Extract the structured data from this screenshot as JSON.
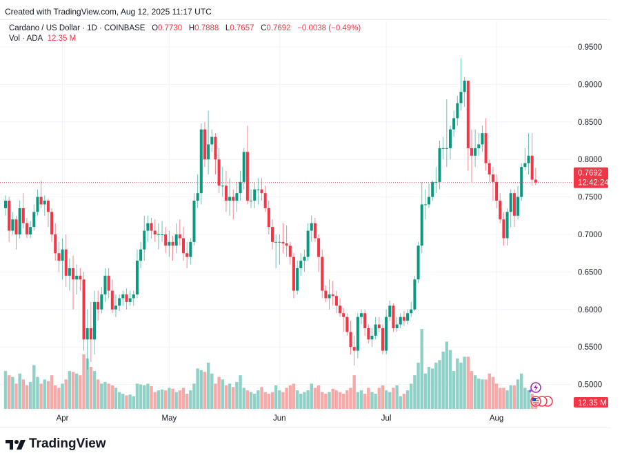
{
  "header": {
    "created": "Created with TradingView.com, Aug 12, 2025 11:17 UTC"
  },
  "legend": {
    "symbol": "Cardano / US Dollar · 1D · COINBASE",
    "o_label": "O",
    "o": "0.7730",
    "h_label": "H",
    "h": "0.7888",
    "l_label": "L",
    "l": "0.7657",
    "c_label": "C",
    "c": "0.7692",
    "change": "−0.0038 (−0.49%)",
    "vol_label": "Vol · ADA",
    "vol": "12.35 M"
  },
  "last_price": {
    "value": "0.7692",
    "countdown": "12:42:24"
  },
  "last_volume": "12.35 M",
  "footer": {
    "logo_text": "TradingView"
  },
  "colors": {
    "up": "#089981",
    "down": "#f23645",
    "up_vol": "#8fd0c7",
    "down_vol": "#f7a9a7",
    "grid": "#f0f3fa"
  },
  "icons": [
    "lightning-event-icon",
    "us-flag-event-icon"
  ],
  "chart_data": {
    "type": "candlestick",
    "title": "Cardano / US Dollar · 1D · COINBASE",
    "y_ticks": [
      "0.9500",
      "0.9000",
      "0.8500",
      "0.8000",
      "0.7500",
      "0.7000",
      "0.6500",
      "0.6000",
      "0.5500",
      "0.5000"
    ],
    "ylim": [
      0.5,
      0.95
    ],
    "x_labels": [
      {
        "label": "Apr",
        "index": 16
      },
      {
        "label": "May",
        "index": 46
      },
      {
        "label": "Jun",
        "index": 77
      },
      {
        "label": "Jul",
        "index": 107
      },
      {
        "label": "Aug",
        "index": 138
      }
    ],
    "grid": true,
    "ohlc": [
      [
        0.735,
        0.752,
        0.725,
        0.745
      ],
      [
        0.745,
        0.75,
        0.69,
        0.705
      ],
      [
        0.705,
        0.73,
        0.7,
        0.72
      ],
      [
        0.72,
        0.725,
        0.68,
        0.7
      ],
      [
        0.7,
        0.745,
        0.695,
        0.735
      ],
      [
        0.735,
        0.755,
        0.708,
        0.715
      ],
      [
        0.715,
        0.722,
        0.695,
        0.7
      ],
      [
        0.7,
        0.718,
        0.695,
        0.71
      ],
      [
        0.71,
        0.74,
        0.705,
        0.73
      ],
      [
        0.73,
        0.76,
        0.725,
        0.75
      ],
      [
        0.75,
        0.772,
        0.735,
        0.74
      ],
      [
        0.74,
        0.752,
        0.725,
        0.745
      ],
      [
        0.745,
        0.748,
        0.71,
        0.73
      ],
      [
        0.73,
        0.735,
        0.69,
        0.7
      ],
      [
        0.7,
        0.715,
        0.665,
        0.675
      ],
      [
        0.675,
        0.69,
        0.65,
        0.665
      ],
      [
        0.665,
        0.695,
        0.64,
        0.68
      ],
      [
        0.68,
        0.7,
        0.63,
        0.645
      ],
      [
        0.645,
        0.668,
        0.625,
        0.655
      ],
      [
        0.655,
        0.672,
        0.6,
        0.64
      ],
      [
        0.64,
        0.66,
        0.62,
        0.645
      ],
      [
        0.645,
        0.655,
        0.625,
        0.64
      ],
      [
        0.64,
        0.65,
        0.545,
        0.56
      ],
      [
        0.56,
        0.6,
        0.52,
        0.575
      ],
      [
        0.575,
        0.61,
        0.53,
        0.56
      ],
      [
        0.56,
        0.625,
        0.54,
        0.61
      ],
      [
        0.61,
        0.625,
        0.585,
        0.6
      ],
      [
        0.6,
        0.63,
        0.595,
        0.62
      ],
      [
        0.62,
        0.655,
        0.61,
        0.645
      ],
      [
        0.645,
        0.655,
        0.615,
        0.625
      ],
      [
        0.625,
        0.64,
        0.595,
        0.6
      ],
      [
        0.6,
        0.62,
        0.59,
        0.605
      ],
      [
        0.605,
        0.62,
        0.598,
        0.615
      ],
      [
        0.615,
        0.625,
        0.605,
        0.62
      ],
      [
        0.62,
        0.628,
        0.6,
        0.61
      ],
      [
        0.61,
        0.625,
        0.605,
        0.615
      ],
      [
        0.615,
        0.625,
        0.605,
        0.62
      ],
      [
        0.62,
        0.68,
        0.615,
        0.665
      ],
      [
        0.665,
        0.69,
        0.655,
        0.68
      ],
      [
        0.68,
        0.725,
        0.665,
        0.705
      ],
      [
        0.705,
        0.725,
        0.69,
        0.715
      ],
      [
        0.715,
        0.722,
        0.695,
        0.705
      ],
      [
        0.705,
        0.72,
        0.69,
        0.7
      ],
      [
        0.7,
        0.715,
        0.68,
        0.7
      ],
      [
        0.7,
        0.718,
        0.69,
        0.7
      ],
      [
        0.7,
        0.71,
        0.675,
        0.685
      ],
      [
        0.685,
        0.705,
        0.67,
        0.69
      ],
      [
        0.69,
        0.698,
        0.665,
        0.685
      ],
      [
        0.685,
        0.715,
        0.675,
        0.7
      ],
      [
        0.7,
        0.72,
        0.685,
        0.695
      ],
      [
        0.695,
        0.71,
        0.665,
        0.675
      ],
      [
        0.675,
        0.69,
        0.655,
        0.67
      ],
      [
        0.67,
        0.695,
        0.66,
        0.69
      ],
      [
        0.69,
        0.755,
        0.685,
        0.745
      ],
      [
        0.745,
        0.78,
        0.735,
        0.755
      ],
      [
        0.755,
        0.848,
        0.74,
        0.84
      ],
      [
        0.84,
        0.85,
        0.79,
        0.8
      ],
      [
        0.8,
        0.865,
        0.78,
        0.82
      ],
      [
        0.82,
        0.84,
        0.81,
        0.83
      ],
      [
        0.83,
        0.835,
        0.78,
        0.8
      ],
      [
        0.8,
        0.815,
        0.755,
        0.765
      ],
      [
        0.765,
        0.79,
        0.75,
        0.765
      ],
      [
        0.765,
        0.785,
        0.73,
        0.745
      ],
      [
        0.745,
        0.775,
        0.725,
        0.75
      ],
      [
        0.75,
        0.76,
        0.72,
        0.745
      ],
      [
        0.745,
        0.77,
        0.73,
        0.755
      ],
      [
        0.755,
        0.785,
        0.745,
        0.77
      ],
      [
        0.77,
        0.815,
        0.76,
        0.81
      ],
      [
        0.81,
        0.845,
        0.74,
        0.745
      ],
      [
        0.745,
        0.76,
        0.735,
        0.745
      ],
      [
        0.745,
        0.77,
        0.735,
        0.76
      ],
      [
        0.76,
        0.775,
        0.74,
        0.76
      ],
      [
        0.76,
        0.775,
        0.745,
        0.755
      ],
      [
        0.755,
        0.765,
        0.73,
        0.735
      ],
      [
        0.735,
        0.745,
        0.7,
        0.71
      ],
      [
        0.71,
        0.72,
        0.68,
        0.69
      ],
      [
        0.69,
        0.7,
        0.655,
        0.69
      ],
      [
        0.69,
        0.7,
        0.66,
        0.69
      ],
      [
        0.69,
        0.715,
        0.675,
        0.688
      ],
      [
        0.688,
        0.712,
        0.67,
        0.685
      ],
      [
        0.685,
        0.69,
        0.66,
        0.67
      ],
      [
        0.67,
        0.675,
        0.615,
        0.625
      ],
      [
        0.625,
        0.665,
        0.62,
        0.655
      ],
      [
        0.655,
        0.675,
        0.645,
        0.665
      ],
      [
        0.665,
        0.68,
        0.65,
        0.67
      ],
      [
        0.67,
        0.715,
        0.665,
        0.705
      ],
      [
        0.705,
        0.725,
        0.69,
        0.715
      ],
      [
        0.715,
        0.722,
        0.69,
        0.695
      ],
      [
        0.695,
        0.7,
        0.65,
        0.67
      ],
      [
        0.67,
        0.68,
        0.615,
        0.625
      ],
      [
        0.625,
        0.632,
        0.61,
        0.615
      ],
      [
        0.615,
        0.64,
        0.6,
        0.62
      ],
      [
        0.62,
        0.638,
        0.605,
        0.618
      ],
      [
        0.618,
        0.625,
        0.595,
        0.605
      ],
      [
        0.605,
        0.615,
        0.59,
        0.595
      ],
      [
        0.595,
        0.602,
        0.57,
        0.59
      ],
      [
        0.59,
        0.595,
        0.565,
        0.57
      ],
      [
        0.57,
        0.585,
        0.54,
        0.55
      ],
      [
        0.55,
        0.565,
        0.525,
        0.545
      ],
      [
        0.545,
        0.595,
        0.535,
        0.59
      ],
      [
        0.59,
        0.6,
        0.58,
        0.595
      ],
      [
        0.595,
        0.6,
        0.565,
        0.575
      ],
      [
        0.575,
        0.58,
        0.555,
        0.56
      ],
      [
        0.56,
        0.575,
        0.55,
        0.565
      ],
      [
        0.565,
        0.59,
        0.56,
        0.58
      ],
      [
        0.58,
        0.59,
        0.57,
        0.575
      ],
      [
        0.575,
        0.58,
        0.54,
        0.545
      ],
      [
        0.545,
        0.6,
        0.54,
        0.59
      ],
      [
        0.59,
        0.612,
        0.585,
        0.605
      ],
      [
        0.605,
        0.608,
        0.57,
        0.575
      ],
      [
        0.575,
        0.59,
        0.57,
        0.58
      ],
      [
        0.58,
        0.595,
        0.575,
        0.59
      ],
      [
        0.59,
        0.598,
        0.578,
        0.585
      ],
      [
        0.585,
        0.6,
        0.58,
        0.595
      ],
      [
        0.595,
        0.61,
        0.59,
        0.6
      ],
      [
        0.6,
        0.645,
        0.598,
        0.64
      ],
      [
        0.64,
        0.69,
        0.635,
        0.685
      ],
      [
        0.685,
        0.77,
        0.675,
        0.74
      ],
      [
        0.74,
        0.76,
        0.72,
        0.74
      ],
      [
        0.74,
        0.768,
        0.735,
        0.75
      ],
      [
        0.75,
        0.772,
        0.745,
        0.77
      ],
      [
        0.77,
        0.79,
        0.755,
        0.77
      ],
      [
        0.77,
        0.825,
        0.76,
        0.815
      ],
      [
        0.815,
        0.83,
        0.8,
        0.815
      ],
      [
        0.815,
        0.88,
        0.79,
        0.815
      ],
      [
        0.815,
        0.845,
        0.8,
        0.84
      ],
      [
        0.84,
        0.865,
        0.83,
        0.855
      ],
      [
        0.855,
        0.885,
        0.845,
        0.875
      ],
      [
        0.875,
        0.935,
        0.865,
        0.89
      ],
      [
        0.89,
        0.91,
        0.87,
        0.905
      ],
      [
        0.905,
        0.905,
        0.785,
        0.815
      ],
      [
        0.815,
        0.84,
        0.77,
        0.805
      ],
      [
        0.805,
        0.84,
        0.79,
        0.815
      ],
      [
        0.815,
        0.835,
        0.805,
        0.82
      ],
      [
        0.82,
        0.845,
        0.81,
        0.835
      ],
      [
        0.835,
        0.855,
        0.785,
        0.795
      ],
      [
        0.795,
        0.8,
        0.77,
        0.78
      ],
      [
        0.78,
        0.79,
        0.745,
        0.77
      ],
      [
        0.77,
        0.78,
        0.735,
        0.745
      ],
      [
        0.745,
        0.755,
        0.715,
        0.72
      ],
      [
        0.72,
        0.73,
        0.685,
        0.695
      ],
      [
        0.695,
        0.735,
        0.685,
        0.73
      ],
      [
        0.73,
        0.76,
        0.71,
        0.755
      ],
      [
        0.755,
        0.76,
        0.71,
        0.725
      ],
      [
        0.725,
        0.765,
        0.72,
        0.75
      ],
      [
        0.75,
        0.795,
        0.745,
        0.79
      ],
      [
        0.79,
        0.815,
        0.785,
        0.795
      ],
      [
        0.795,
        0.835,
        0.78,
        0.805
      ],
      [
        0.805,
        0.835,
        0.765,
        0.773
      ],
      [
        0.773,
        0.7888,
        0.7657,
        0.7692
      ]
    ],
    "volume_millions": [
      45,
      40,
      38,
      30,
      42,
      35,
      28,
      32,
      52,
      38,
      30,
      35,
      33,
      40,
      28,
      25,
      30,
      35,
      45,
      44,
      42,
      40,
      65,
      60,
      50,
      45,
      35,
      30,
      32,
      30,
      28,
      25,
      20,
      18,
      16,
      17,
      15,
      30,
      29,
      28,
      30,
      27,
      20,
      22,
      23,
      22,
      25,
      24,
      20,
      22,
      25,
      18,
      22,
      30,
      48,
      46,
      44,
      55,
      42,
      30,
      38,
      35,
      28,
      30,
      26,
      32,
      40,
      25,
      22,
      20,
      18,
      22,
      26,
      20,
      18,
      20,
      28,
      22,
      20,
      25,
      28,
      30,
      22,
      18,
      20,
      22,
      30,
      25,
      28,
      20,
      18,
      20,
      24,
      22,
      20,
      18,
      22,
      25,
      40,
      20,
      22,
      18,
      25,
      20,
      18,
      25,
      28,
      22,
      20,
      25,
      28,
      15,
      18,
      22,
      30,
      40,
      55,
      95,
      42,
      50,
      48,
      55,
      58,
      68,
      80,
      70,
      45,
      60,
      55,
      62,
      62,
      45,
      40,
      36,
      35,
      35,
      42,
      38,
      30,
      25,
      25,
      22,
      28,
      28,
      35,
      42,
      25,
      22,
      18,
      12.35
    ]
  }
}
